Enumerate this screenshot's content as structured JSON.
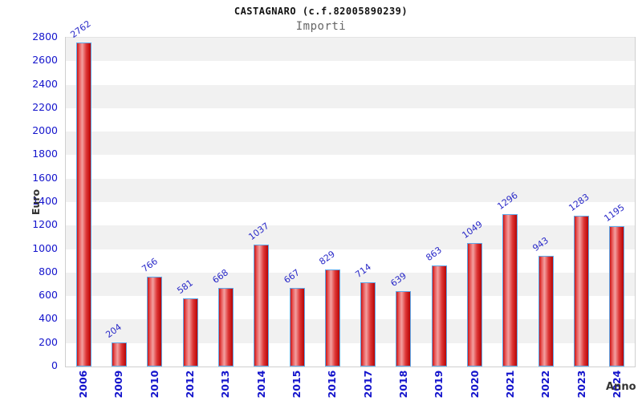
{
  "chart_data": {
    "type": "bar",
    "title": "CASTAGNARO (c.f.82005890239)",
    "subtitle": "Importi",
    "xlabel": "Anno",
    "ylabel": "Euro",
    "categories": [
      "2006",
      "2009",
      "2010",
      "2012",
      "2013",
      "2014",
      "2015",
      "2016",
      "2017",
      "2018",
      "2019",
      "2020",
      "2021",
      "2022",
      "2023",
      "2024"
    ],
    "values": [
      2762,
      204,
      766,
      581,
      668,
      1037,
      667,
      829,
      714,
      639,
      863,
      1049,
      1296,
      943,
      1283,
      1195
    ],
    "ylim": [
      0,
      2800
    ],
    "ytick_step": 200,
    "grid": "horizontal-alternating-bands",
    "legend": "none",
    "colors": {
      "bar_fill": "#dd3535",
      "bar_border": "#5fa8e8",
      "tick_label": "#1414cc",
      "value_label": "#2a2ac8",
      "band_gray": "#f1f1f1",
      "band_white": "#ffffff",
      "axis_title": "#333333",
      "title_text": "#111111",
      "subtitle_text": "#666666"
    }
  }
}
